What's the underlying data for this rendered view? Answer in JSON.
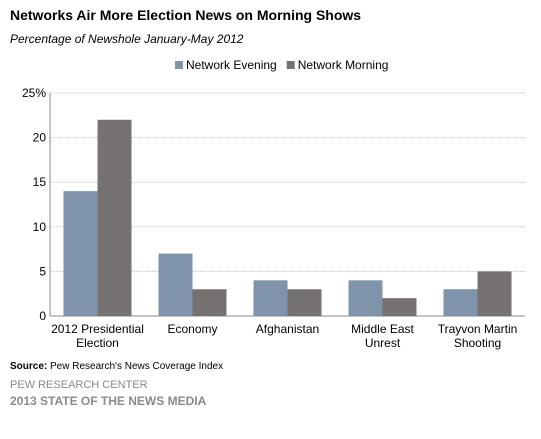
{
  "chart_data": {
    "type": "bar",
    "title": "Networks Air More Election News on Morning Shows",
    "subtitle": "Percentage of Newshole January-May 2012",
    "categories": [
      "2012 Presidential Election",
      "Economy",
      "Afghanistan",
      "Middle East Unrest",
      "Trayvon Martin Shooting"
    ],
    "series": [
      {
        "name": "Network Evening",
        "color": "#7f93ab",
        "values": [
          14,
          7,
          4,
          4,
          3
        ]
      },
      {
        "name": "Network Morning",
        "color": "#767171",
        "values": [
          22,
          3,
          3,
          2,
          5
        ]
      }
    ],
    "ylim": [
      0,
      25
    ],
    "yticks": [
      0,
      5,
      10,
      15,
      20,
      {
        "value": 25,
        "label": "25%"
      }
    ],
    "grid": true,
    "legend": "top",
    "source": {
      "label": "Source:",
      "text": "Pew Research's News Coverage Index"
    },
    "footer": [
      "PEW RESEARCH CENTER",
      "2013 STATE OF THE NEWS MEDIA"
    ]
  }
}
